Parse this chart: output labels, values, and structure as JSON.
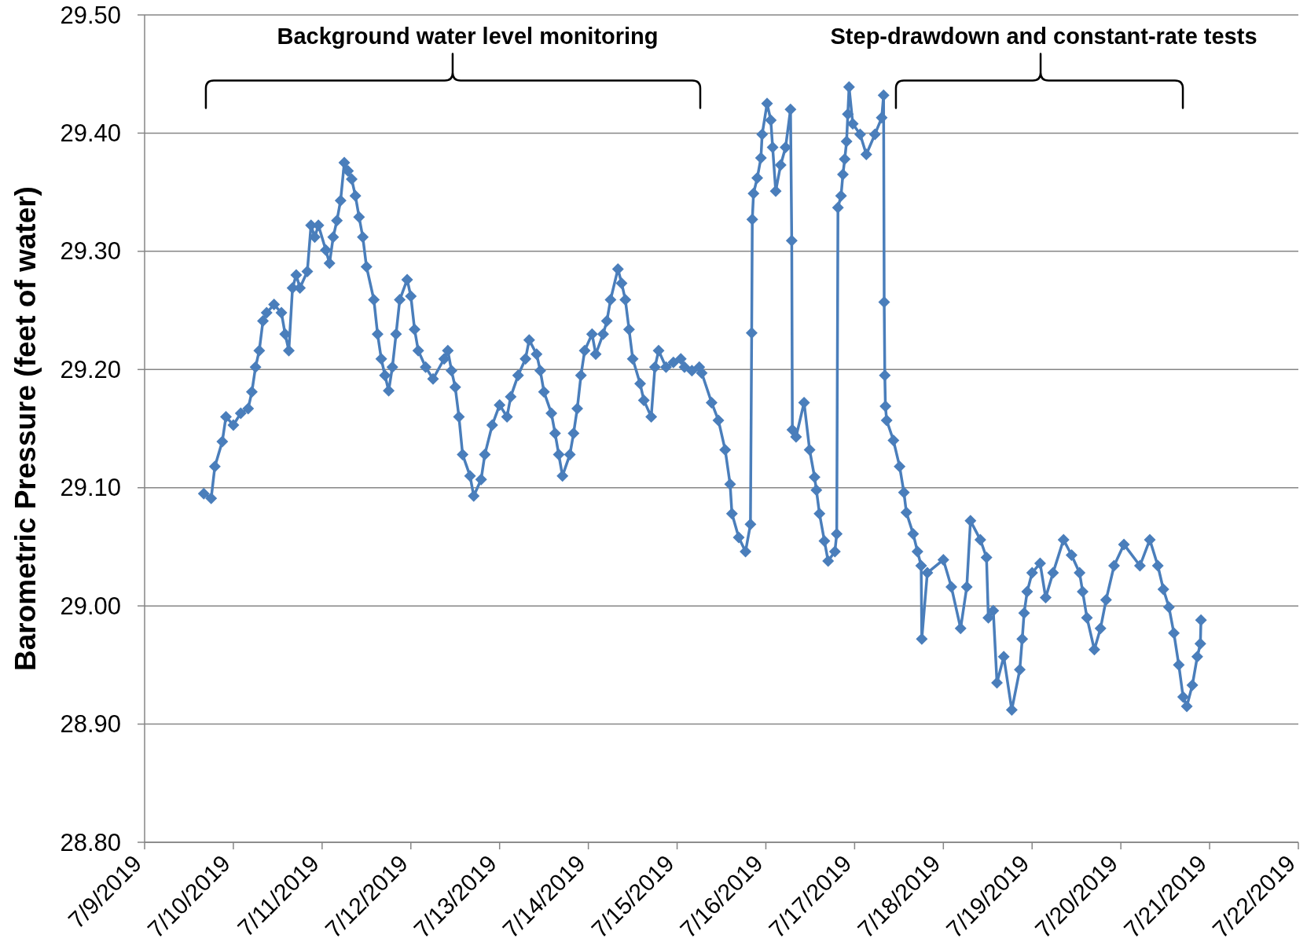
{
  "chart_data": {
    "type": "line",
    "ylabel": "Barometric Pressure (feet of water)",
    "annotations": [
      "Background water level monitoring",
      "Step-drawdown and constant-rate tests"
    ],
    "color": "#4a7ebb",
    "marker": "diamond",
    "line_style": "solid",
    "grid": "y",
    "xlim": [
      "2019-07-09",
      "2019-07-22"
    ],
    "xticks": [
      {
        "value": "2019-07-09",
        "label": "7/9/2019"
      },
      {
        "value": "2019-07-10",
        "label": "7/10/2019"
      },
      {
        "value": "2019-07-11",
        "label": "7/11/2019"
      },
      {
        "value": "2019-07-12",
        "label": "7/12/2019"
      },
      {
        "value": "2019-07-13",
        "label": "7/13/2019"
      },
      {
        "value": "2019-07-14",
        "label": "7/14/2019"
      },
      {
        "value": "2019-07-15",
        "label": "7/15/2019"
      },
      {
        "value": "2019-07-16",
        "label": "7/16/2019"
      },
      {
        "value": "2019-07-17",
        "label": "7/17/2019"
      },
      {
        "value": "2019-07-18",
        "label": "7/18/2019"
      },
      {
        "value": "2019-07-19",
        "label": "7/19/2019"
      },
      {
        "value": "2019-07-20",
        "label": "7/20/2019"
      },
      {
        "value": "2019-07-21",
        "label": "7/21/2019"
      },
      {
        "value": "2019-07-22",
        "label": "7/22/2019"
      }
    ],
    "ylim": [
      28.8,
      29.5
    ],
    "yticks": [
      {
        "value": 28.8,
        "label": "28.80"
      },
      {
        "value": 28.9,
        "label": "28.90"
      },
      {
        "value": 29.0,
        "label": "29.00"
      },
      {
        "value": 29.1,
        "label": "29.10"
      },
      {
        "value": 29.2,
        "label": "29.20"
      },
      {
        "value": 29.3,
        "label": "29.30"
      },
      {
        "value": 29.4,
        "label": "29.40"
      },
      {
        "value": 29.5,
        "label": "29.50"
      }
    ],
    "x": [
      "2019-07-09T16:00",
      "2019-07-09T18:00",
      "2019-07-09T19:00",
      "2019-07-09T21:00",
      "2019-07-09T22:00",
      "2019-07-10T00:00",
      "2019-07-10T02:00",
      "2019-07-10T04:00",
      "2019-07-10T05:00",
      "2019-07-10T06:00",
      "2019-07-10T07:00",
      "2019-07-10T08:00",
      "2019-07-10T09:00",
      "2019-07-10T11:00",
      "2019-07-10T13:00",
      "2019-07-10T14:00",
      "2019-07-10T15:00",
      "2019-07-10T16:00",
      "2019-07-10T17:00",
      "2019-07-10T18:00",
      "2019-07-10T20:00",
      "2019-07-10T21:00",
      "2019-07-10T22:00",
      "2019-07-10T23:00",
      "2019-07-11T01:00",
      "2019-07-11T02:00",
      "2019-07-11T03:00",
      "2019-07-11T04:00",
      "2019-07-11T05:00",
      "2019-07-11T06:00",
      "2019-07-11T07:00",
      "2019-07-11T08:00",
      "2019-07-11T09:00",
      "2019-07-11T10:00",
      "2019-07-11T11:00",
      "2019-07-11T12:00",
      "2019-07-11T14:00",
      "2019-07-11T15:00",
      "2019-07-11T16:00",
      "2019-07-11T17:00",
      "2019-07-11T18:00",
      "2019-07-11T19:00",
      "2019-07-11T20:00",
      "2019-07-11T21:00",
      "2019-07-11T23:00",
      "2019-07-12T00:00",
      "2019-07-12T01:00",
      "2019-07-12T02:00",
      "2019-07-12T04:00",
      "2019-07-12T06:00",
      "2019-07-12T09:00",
      "2019-07-12T10:00",
      "2019-07-12T11:00",
      "2019-07-12T12:00",
      "2019-07-12T13:00",
      "2019-07-12T14:00",
      "2019-07-12T16:00",
      "2019-07-12T17:00",
      "2019-07-12T19:00",
      "2019-07-12T20:00",
      "2019-07-12T22:00",
      "2019-07-13T00:00",
      "2019-07-13T02:00",
      "2019-07-13T03:00",
      "2019-07-13T05:00",
      "2019-07-13T07:00",
      "2019-07-13T08:00",
      "2019-07-13T10:00",
      "2019-07-13T11:00",
      "2019-07-13T12:00",
      "2019-07-13T14:00",
      "2019-07-13T15:00",
      "2019-07-13T16:00",
      "2019-07-13T17:00",
      "2019-07-13T19:00",
      "2019-07-13T20:00",
      "2019-07-13T21:00",
      "2019-07-13T22:00",
      "2019-07-13T23:00",
      "2019-07-14T01:00",
      "2019-07-14T02:00",
      "2019-07-14T04:00",
      "2019-07-14T05:00",
      "2019-07-14T06:00",
      "2019-07-14T08:00",
      "2019-07-14T09:00",
      "2019-07-14T10:00",
      "2019-07-14T11:00",
      "2019-07-14T12:00",
      "2019-07-14T14:00",
      "2019-07-14T15:00",
      "2019-07-14T17:00",
      "2019-07-14T18:00",
      "2019-07-14T19:00",
      "2019-07-14T21:00",
      "2019-07-14T23:00",
      "2019-07-15T01:00",
      "2019-07-15T02:00",
      "2019-07-15T04:00",
      "2019-07-15T06:00",
      "2019-07-15T06:40",
      "2019-07-15T09:20",
      "2019-07-15T11:10",
      "2019-07-15T13:00",
      "2019-07-15T14:20",
      "2019-07-15T14:50",
      "2019-07-15T16:40",
      "2019-07-15T18:30",
      "2019-07-15T19:50",
      "2019-07-15T20:10",
      "2019-07-15T20:20",
      "2019-07-15T20:40",
      "2019-07-15T21:40",
      "2019-07-15T22:40",
      "2019-07-15T23:00",
      "2019-07-16T00:20",
      "2019-07-16T01:20",
      "2019-07-16T01:50",
      "2019-07-16T02:40",
      "2019-07-16T04:00",
      "2019-07-16T05:20",
      "2019-07-16T06:40",
      "2019-07-16T07:00",
      "2019-07-16T07:10",
      "2019-07-16T08:10",
      "2019-07-16T10:20",
      "2019-07-16T11:50",
      "2019-07-16T13:10",
      "2019-07-16T13:40",
      "2019-07-16T14:30",
      "2019-07-16T15:50",
      "2019-07-16T16:50",
      "2019-07-16T18:40",
      "2019-07-16T19:10",
      "2019-07-16T19:30",
      "2019-07-16T20:20",
      "2019-07-16T20:50",
      "2019-07-16T21:20",
      "2019-07-16T21:50",
      "2019-07-16T22:10",
      "2019-07-16T22:30",
      "2019-07-16T23:30",
      "2019-07-17T01:30",
      "2019-07-17T03:10",
      "2019-07-17T05:30",
      "2019-07-17T07:20",
      "2019-07-17T07:50",
      "2019-07-17T08:00",
      "2019-07-17T08:10",
      "2019-07-17T08:20",
      "2019-07-17T08:40",
      "2019-07-17T10:30",
      "2019-07-17T12:10",
      "2019-07-17T13:20",
      "2019-07-17T14:00",
      "2019-07-17T15:50",
      "2019-07-17T17:00",
      "2019-07-17T18:00",
      "2019-07-17T18:10",
      "2019-07-17T19:40",
      "2019-07-18T00:00",
      "2019-07-18T02:10",
      "2019-07-18T04:40",
      "2019-07-18T06:20",
      "2019-07-18T07:20",
      "2019-07-18T10:00",
      "2019-07-18T11:40",
      "2019-07-18T12:10",
      "2019-07-18T13:30",
      "2019-07-18T14:30",
      "2019-07-18T16:20",
      "2019-07-18T18:30",
      "2019-07-18T20:40",
      "2019-07-18T21:20",
      "2019-07-18T21:50",
      "2019-07-18T22:40",
      "2019-07-19T00:00",
      "2019-07-19T02:10",
      "2019-07-19T03:40",
      "2019-07-19T05:40",
      "2019-07-19T08:30",
      "2019-07-19T10:40",
      "2019-07-19T12:50",
      "2019-07-19T13:40",
      "2019-07-19T14:50",
      "2019-07-19T16:50",
      "2019-07-19T18:30",
      "2019-07-19T20:00",
      "2019-07-19T22:10",
      "2019-07-20T00:50",
      "2019-07-20T05:10",
      "2019-07-20T07:50",
      "2019-07-20T10:00",
      "2019-07-20T11:30",
      "2019-07-20T13:00",
      "2019-07-20T14:20",
      "2019-07-20T15:40",
      "2019-07-20T16:50",
      "2019-07-20T17:50",
      "2019-07-20T19:20",
      "2019-07-20T20:40",
      "2019-07-20T21:30",
      "2019-07-20T21:40"
    ],
    "values": [
      29.095,
      29.091,
      29.118,
      29.139,
      29.16,
      29.153,
      29.163,
      29.167,
      29.181,
      29.202,
      29.216,
      29.241,
      29.248,
      29.255,
      29.248,
      29.23,
      29.216,
      29.269,
      29.28,
      29.269,
      29.283,
      29.322,
      29.312,
      29.322,
      29.301,
      29.29,
      29.312,
      29.326,
      29.343,
      29.375,
      29.368,
      29.361,
      29.347,
      29.329,
      29.312,
      29.287,
      29.259,
      29.23,
      29.209,
      29.195,
      29.182,
      29.202,
      29.23,
      29.259,
      29.276,
      29.262,
      29.234,
      29.216,
      29.202,
      29.192,
      29.209,
      29.216,
      29.199,
      29.185,
      29.16,
      29.128,
      29.11,
      29.093,
      29.107,
      29.128,
      29.153,
      29.17,
      29.16,
      29.177,
      29.195,
      29.209,
      29.225,
      29.213,
      29.199,
      29.181,
      29.163,
      29.146,
      29.128,
      29.11,
      29.128,
      29.146,
      29.167,
      29.195,
      29.216,
      29.23,
      29.213,
      29.23,
      29.241,
      29.259,
      29.285,
      29.273,
      29.259,
      29.234,
      29.209,
      29.188,
      29.174,
      29.16,
      29.202,
      29.216,
      29.202,
      29.206,
      29.209,
      29.202,
      29.199,
      29.202,
      29.197,
      29.172,
      29.157,
      29.132,
      29.103,
      29.078,
      29.058,
      29.046,
      29.069,
      29.231,
      29.327,
      29.349,
      29.362,
      29.379,
      29.399,
      29.425,
      29.411,
      29.388,
      29.351,
      29.373,
      29.388,
      29.42,
      29.309,
      29.149,
      29.143,
      29.172,
      29.132,
      29.109,
      29.098,
      29.078,
      29.055,
      29.038,
      29.046,
      29.061,
      29.337,
      29.347,
      29.365,
      29.378,
      29.393,
      29.416,
      29.439,
      29.408,
      29.399,
      29.382,
      29.399,
      29.413,
      29.432,
      29.257,
      29.195,
      29.169,
      29.157,
      29.14,
      29.118,
      29.096,
      29.079,
      29.061,
      29.046,
      29.034,
      28.972,
      29.028,
      29.039,
      29.016,
      28.981,
      29.016,
      29.072,
      29.056,
      29.041,
      28.99,
      28.996,
      28.935,
      28.957,
      28.912,
      28.946,
      28.972,
      28.994,
      29.012,
      29.028,
      29.036,
      29.007,
      29.028,
      29.056,
      29.043,
      29.028,
      29.012,
      28.99,
      28.963,
      28.981,
      29.005,
      29.034,
      29.052,
      29.034,
      29.056,
      29.034,
      29.014,
      28.999,
      28.977,
      28.95,
      28.923,
      28.915,
      28.933,
      28.957,
      28.968,
      28.988
    ]
  }
}
